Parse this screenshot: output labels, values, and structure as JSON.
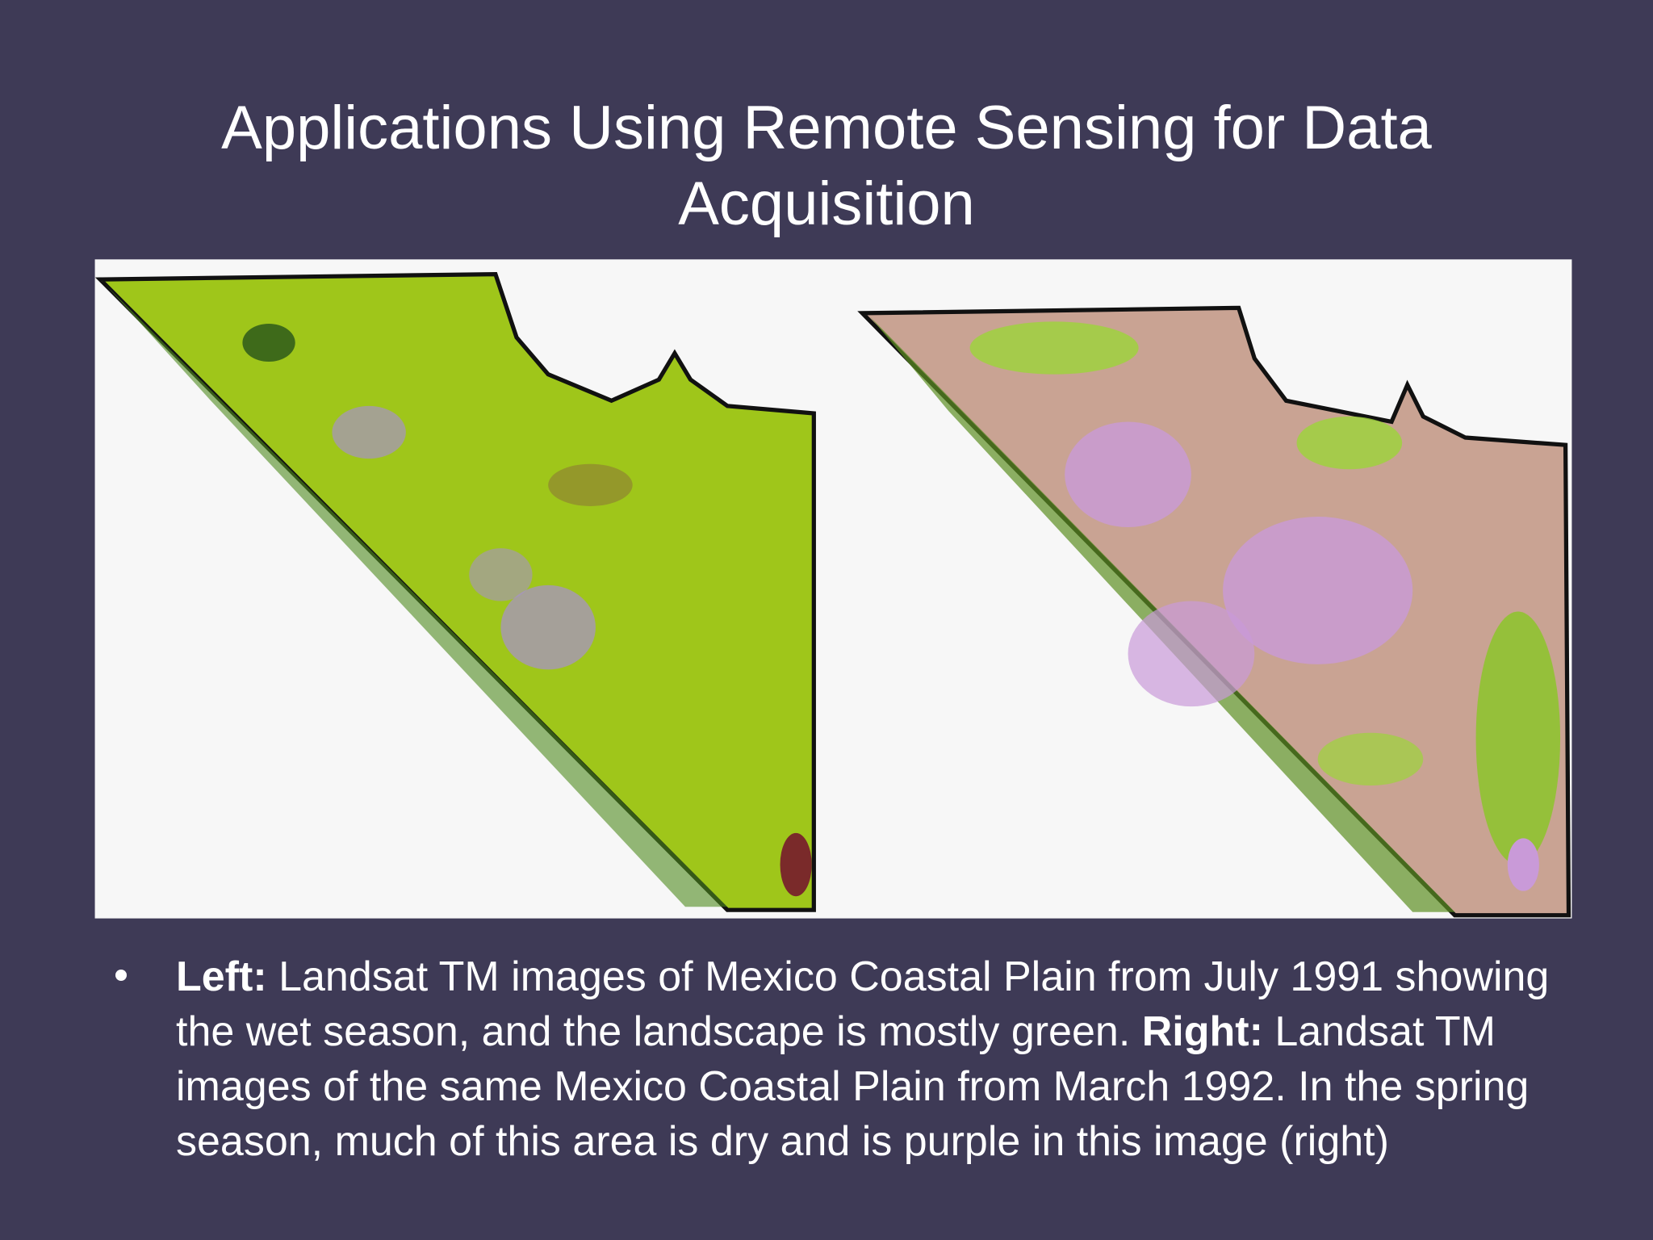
{
  "slide": {
    "title": "Applications Using Remote Sensing for Data Acquisition",
    "bullet": {
      "left_label": "Left:",
      "left_text": "Landsat TM images of Mexico Coastal Plain from July 1991 showing the wet season, and the landscape is mostly green.",
      "right_label": "Right:",
      "right_text": "Landsat TM images of the same Mexico Coastal Plain from March 1992. In the spring season, much of this area is dry and is purple in this image (right)"
    }
  }
}
